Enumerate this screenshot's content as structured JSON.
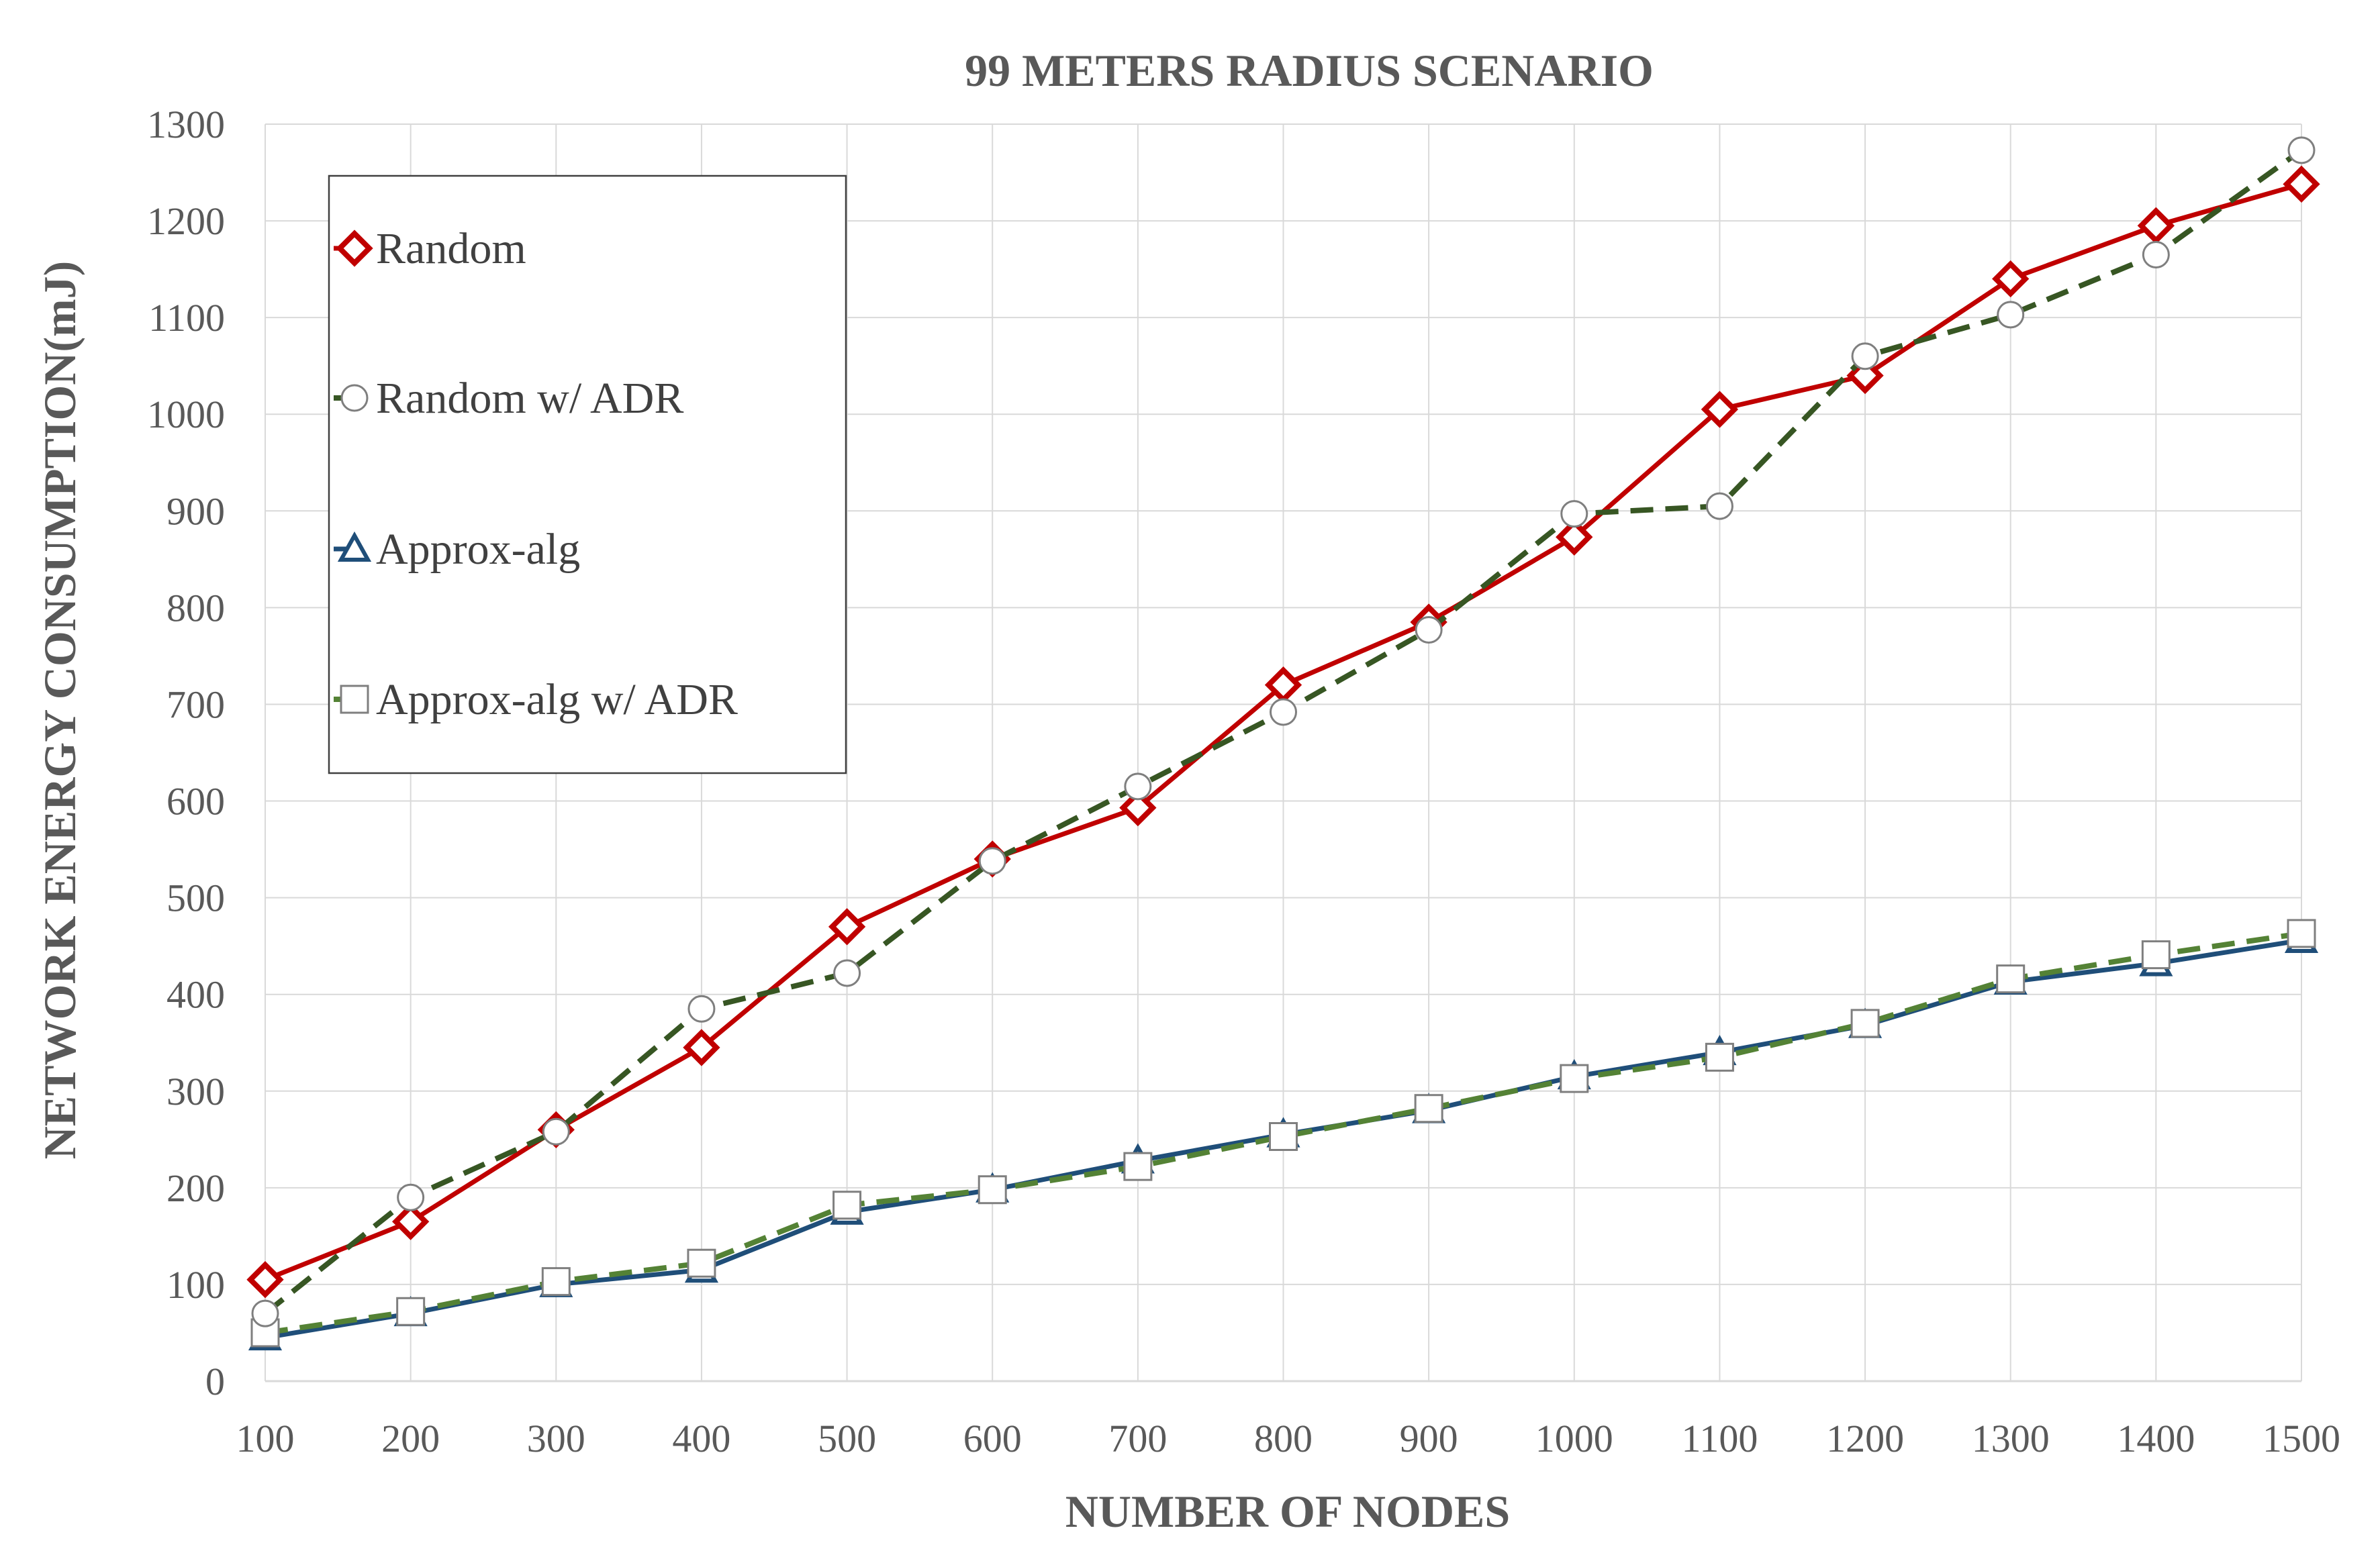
{
  "chart_data": {
    "type": "line",
    "title": "99 METERS RADIUS SCENARIO",
    "xlabel": "NUMBER OF NODES",
    "ylabel": "NETWORK ENERGY CONSUMPTION(mJ)",
    "x": [
      100,
      200,
      300,
      400,
      500,
      600,
      700,
      800,
      900,
      1000,
      1100,
      1200,
      1300,
      1400,
      1500
    ],
    "xlim": [
      100,
      1500
    ],
    "ylim": [
      0,
      1300
    ],
    "yticks": [
      0,
      100,
      200,
      300,
      400,
      500,
      600,
      700,
      800,
      900,
      1000,
      1100,
      1200,
      1300
    ],
    "grid": true,
    "legend_position": "top-left",
    "series": [
      {
        "name": "Random",
        "color": "#c00000",
        "line_style": "solid",
        "marker": "diamond",
        "values": [
          105,
          165,
          260,
          345,
          470,
          540,
          593,
          720,
          785,
          873,
          1005,
          1040,
          1140,
          1195,
          1238
        ]
      },
      {
        "name": "Random w/ ADR",
        "color": "#375623",
        "line_style": "dashed",
        "marker": "circle",
        "values": [
          70,
          190,
          258,
          385,
          422,
          538,
          615,
          692,
          777,
          897,
          905,
          1060,
          1103,
          1165,
          1273
        ]
      },
      {
        "name": "Approx-alg",
        "color": "#1f4e79",
        "line_style": "solid",
        "marker": "triangle",
        "values": [
          45,
          70,
          100,
          115,
          175,
          198,
          228,
          255,
          280,
          315,
          340,
          368,
          413,
          432,
          456
        ]
      },
      {
        "name": "Approx-alg w/ ADR",
        "color": "#548235",
        "line_style": "dashed",
        "marker": "square",
        "values": [
          50,
          72,
          103,
          122,
          182,
          198,
          222,
          253,
          282,
          313,
          335,
          370,
          416,
          441,
          463
        ]
      }
    ]
  }
}
